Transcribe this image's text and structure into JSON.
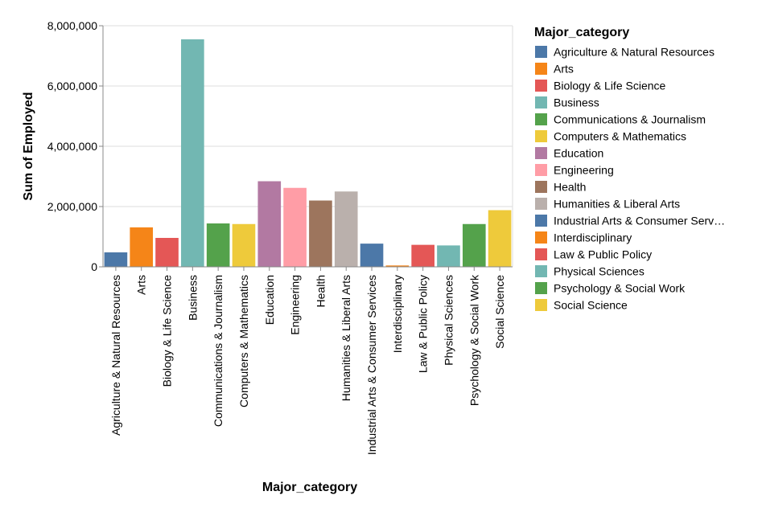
{
  "chart_data": {
    "type": "bar",
    "title": "",
    "xlabel": "Major_category",
    "ylabel": "Sum of Employed",
    "ylim": [
      0,
      8000000
    ],
    "yticks": [
      0,
      2000000,
      4000000,
      6000000,
      8000000
    ],
    "ytick_labels": [
      "0",
      "2,000,000",
      "4,000,000",
      "6,000,000",
      "8,000,000"
    ],
    "grid": true,
    "legend_position": "right",
    "legend_title": "Major_category",
    "categories": [
      "Agriculture & Natural Resources",
      "Arts",
      "Biology & Life Science",
      "Business",
      "Communications & Journalism",
      "Computers & Mathematics",
      "Education",
      "Engineering",
      "Health",
      "Humanities & Liberal Arts",
      "Industrial Arts & Consumer Services",
      "Interdisciplinary",
      "Law & Public Policy",
      "Physical Sciences",
      "Psychology & Social Work",
      "Social Science"
    ],
    "legend_labels": [
      "Agriculture & Natural Resources",
      "Arts",
      "Biology & Life Science",
      "Business",
      "Communications & Journalism",
      "Computers & Mathematics",
      "Education",
      "Engineering",
      "Health",
      "Humanities & Liberal Arts",
      "Industrial Arts & Consumer Serv…",
      "Interdisciplinary",
      "Law & Public Policy",
      "Physical Sciences",
      "Psychology & Social Work",
      "Social Science"
    ],
    "values": [
      480000,
      1310000,
      960000,
      7550000,
      1440000,
      1420000,
      2840000,
      2620000,
      2200000,
      2500000,
      770000,
      45000,
      730000,
      710000,
      1420000,
      1880000
    ],
    "colors": [
      "#4c78a8",
      "#f58518",
      "#e45756",
      "#72b7b2",
      "#54a24b",
      "#eeca3b",
      "#b279a2",
      "#ff9da6",
      "#9d755d",
      "#bab0ac",
      "#4c78a8",
      "#f58518",
      "#e45756",
      "#72b7b2",
      "#54a24b",
      "#eeca3b"
    ]
  }
}
